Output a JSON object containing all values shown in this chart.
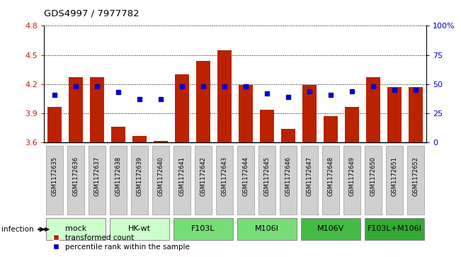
{
  "title": "GDS4997 / 7977782",
  "samples": [
    "GSM1172635",
    "GSM1172636",
    "GSM1172637",
    "GSM1172638",
    "GSM1172639",
    "GSM1172640",
    "GSM1172641",
    "GSM1172642",
    "GSM1172643",
    "GSM1172644",
    "GSM1172645",
    "GSM1172646",
    "GSM1172647",
    "GSM1172648",
    "GSM1172649",
    "GSM1172650",
    "GSM1172651",
    "GSM1172652"
  ],
  "bar_values": [
    3.97,
    4.27,
    4.27,
    3.76,
    3.67,
    3.62,
    4.3,
    4.44,
    4.55,
    4.19,
    3.94,
    3.74,
    4.19,
    3.87,
    3.97,
    4.27,
    4.17,
    4.17
  ],
  "percentile_values": [
    41,
    48,
    48,
    43,
    37,
    37,
    48,
    48,
    48,
    48,
    42,
    39,
    44,
    41,
    44,
    48,
    45,
    45
  ],
  "ylim_left": [
    3.6,
    4.8
  ],
  "ylim_right": [
    0,
    100
  ],
  "yticks_left": [
    3.6,
    3.9,
    4.2,
    4.5,
    4.8
  ],
  "yticks_right": [
    0,
    25,
    50,
    75,
    100
  ],
  "ytick_labels_right": [
    "0",
    "25",
    "50",
    "75",
    "100%"
  ],
  "bar_color": "#bb2200",
  "marker_color": "#0000cc",
  "bar_width": 0.65,
  "groups": [
    {
      "label": "mock",
      "start": 0,
      "end": 2,
      "color": "#ccffcc"
    },
    {
      "label": "HK-wt",
      "start": 3,
      "end": 5,
      "color": "#ccffcc"
    },
    {
      "label": "F103L",
      "start": 6,
      "end": 8,
      "color": "#77dd77"
    },
    {
      "label": "M106I",
      "start": 9,
      "end": 11,
      "color": "#77dd77"
    },
    {
      "label": "M106V",
      "start": 12,
      "end": 14,
      "color": "#44bb44"
    },
    {
      "label": "F103L+M106I",
      "start": 15,
      "end": 17,
      "color": "#33aa33"
    }
  ],
  "infection_label": "infection",
  "legend_item1": "transformed count",
  "legend_item2": "percentile rank within the sample",
  "legend_color1": "#bb2200",
  "legend_color2": "#0000cc",
  "tick_label_bg": "#d0d0d0",
  "tick_label_edge": "#999999"
}
